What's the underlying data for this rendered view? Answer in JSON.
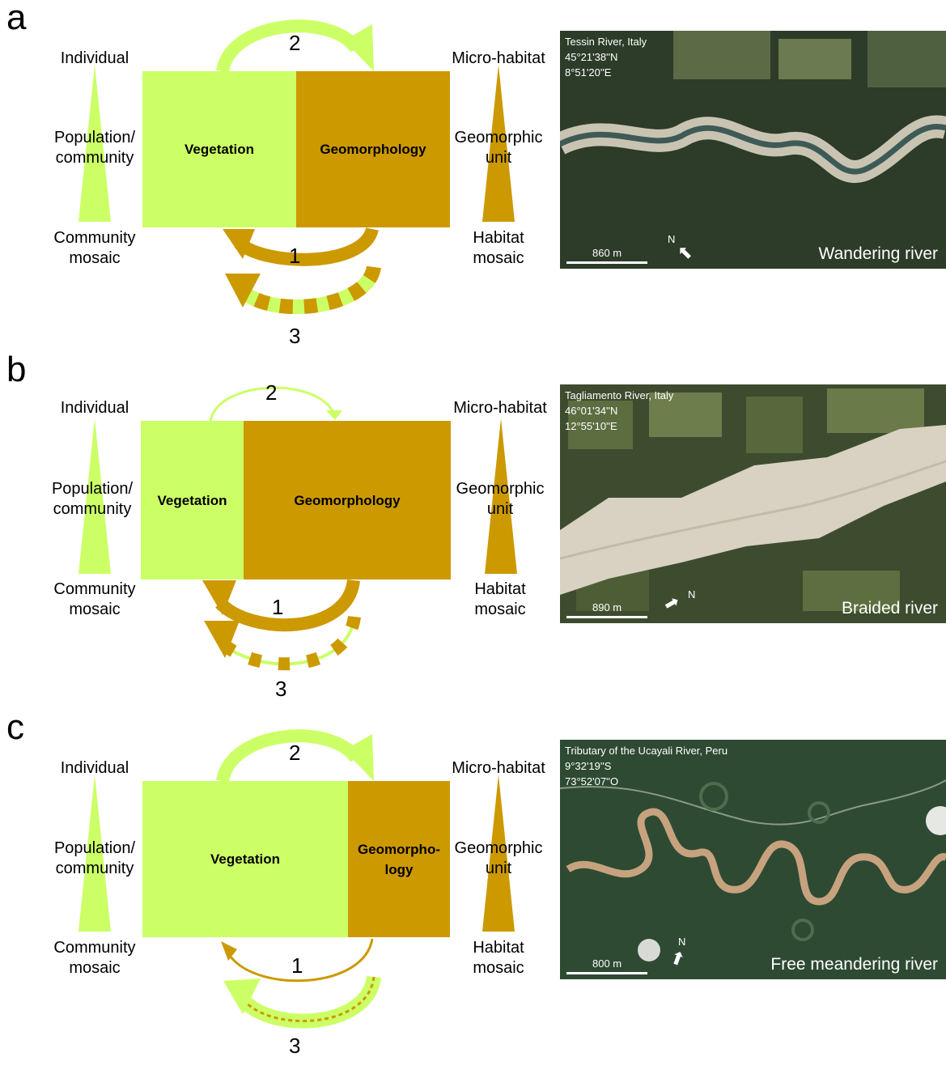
{
  "colors": {
    "vegetation": "#ccff66",
    "geomorphology": "#cc9900"
  },
  "left_scale": [
    "Individual",
    "Population/\ncommunity",
    "Community\nmosaic"
  ],
  "right_scale": [
    "Micro-habitat",
    "Geomorphic\nunit",
    "Habitat\nmosaic"
  ],
  "panels": [
    {
      "letter": "a",
      "vegetation_label": "Vegetation",
      "geomorphology_label": "Geomorphology",
      "arrow_numbers": [
        "2",
        "1",
        "3"
      ],
      "photo": {
        "caption": "Tessin River, Italy\n45°21'38''N\n8°51'20''E",
        "scale": "860 m",
        "north": "N",
        "river_type": "Wandering river"
      }
    },
    {
      "letter": "b",
      "vegetation_label": "Vegetation",
      "geomorphology_label": "Geomorphology",
      "arrow_numbers": [
        "2",
        "1",
        "3"
      ],
      "photo": {
        "caption": "Tagliamento River, Italy\n46°01'34''N\n12°55'10''E",
        "scale": "890 m",
        "north": "N",
        "river_type": "Braided river"
      }
    },
    {
      "letter": "c",
      "vegetation_label": "Vegetation",
      "geomorphology_label": "Geomorpho-\nlogy",
      "arrow_numbers": [
        "2",
        "1",
        "3"
      ],
      "photo": {
        "caption": "Tributary of the Ucayali River, Peru\n9°32'19''S\n73°52'07''O",
        "scale": "800 m",
        "north": "N",
        "river_type": "Free meandering  river"
      }
    }
  ]
}
